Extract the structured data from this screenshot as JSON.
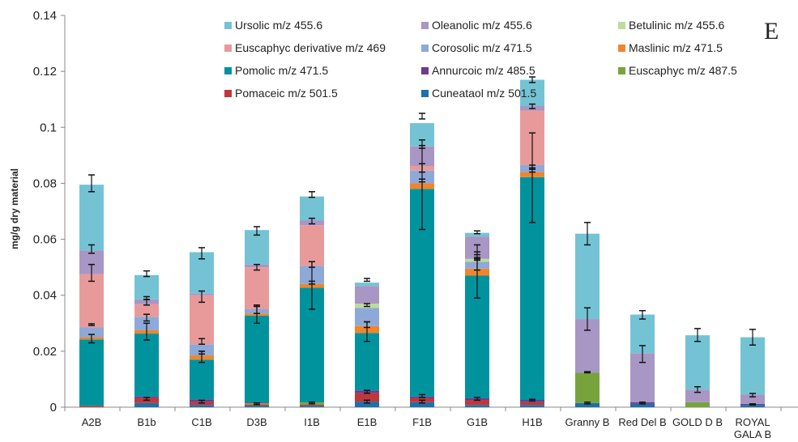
{
  "chart_data": {
    "type": "bar",
    "stacked": true,
    "panel_label": "E",
    "ylabel": "mg/g dry material",
    "xlabel": "",
    "ylim": [
      0,
      0.14
    ],
    "yticks": [
      "0",
      "0.02",
      "0.04",
      "0.06",
      "0.08",
      "0.1",
      "0.12",
      "0.14"
    ],
    "legend_position": "top",
    "categories": [
      "A2B",
      "B1b",
      "C1B",
      "D3B",
      "I1B",
      "E1B",
      "F1B",
      "G1B",
      "H1B",
      "Granny B",
      "Red Del B",
      "GOLD D B",
      "ROYAL GALA B"
    ],
    "series": [
      {
        "name": "Cuneataol m/z 501.5",
        "color": "#1F6FA8",
        "values": [
          0.0,
          0.0015,
          0.0008,
          0.0005,
          0.0005,
          0.002,
          0.0018,
          0.0008,
          0.0008,
          0.0015,
          0.0012,
          0.0,
          0.0008
        ]
      },
      {
        "name": "Pomaceic m/z 501.5",
        "color": "#C0363A",
        "values": [
          0.0005,
          0.0018,
          0.0012,
          0.0004,
          0.0004,
          0.003,
          0.0014,
          0.0018,
          0.001,
          0.0,
          0.0,
          0.0,
          0.0
        ]
      },
      {
        "name": "Euscaphyc m/z 487.5",
        "color": "#77A33D",
        "values": [
          0.0,
          0.0,
          0.0,
          0.0005,
          0.0008,
          0.0,
          0.0,
          0.0,
          0.0,
          0.0108,
          0.0,
          0.0018,
          0.0
        ]
      },
      {
        "name": "Annurcoic m/z 485.5",
        "color": "#6A3D8F",
        "values": [
          0.0,
          0.0005,
          0.0008,
          0.0003,
          0.0,
          0.001,
          0.0006,
          0.0006,
          0.0008,
          0.0,
          0.0006,
          0.0,
          0.0004
        ]
      },
      {
        "name": "Pomolic m/z 471.5",
        "color": "#00939E",
        "values": [
          0.0237,
          0.0225,
          0.0142,
          0.031,
          0.041,
          0.0205,
          0.0742,
          0.0438,
          0.0796,
          0.0,
          0.0,
          0.0,
          0.0
        ]
      },
      {
        "name": "Maslinic m/z 471.5",
        "color": "#F0852B",
        "values": [
          0.0008,
          0.0012,
          0.0015,
          0.0008,
          0.0013,
          0.0025,
          0.002,
          0.0025,
          0.0018,
          0.0,
          0.0,
          0.0,
          0.0
        ]
      },
      {
        "name": "Corosolic m/z 471.5",
        "color": "#8EA9D8",
        "values": [
          0.0035,
          0.0048,
          0.004,
          0.0015,
          0.0065,
          0.0065,
          0.0045,
          0.0025,
          0.0025,
          0.0,
          0.0,
          0.0,
          0.0
        ]
      },
      {
        "name": "Euscaphyc derivative m/z 469",
        "color": "#E89A9A",
        "values": [
          0.019,
          0.0045,
          0.0175,
          0.015,
          0.0145,
          0.0,
          0.0017,
          0.0,
          0.0195,
          0.0,
          0.0,
          0.0,
          0.0
        ]
      },
      {
        "name": "Betulinic m/z 455.6",
        "color": "#BDDC9A",
        "values": [
          0.0,
          0.0,
          0.0,
          0.0,
          0.0,
          0.0015,
          0.0,
          0.001,
          0.0,
          0.0,
          0.0,
          0.0,
          0.0
        ]
      },
      {
        "name": "Oleanolic m/z 455.6",
        "color": "#A896C4",
        "values": [
          0.0085,
          0.0017,
          0.0006,
          0.001,
          0.0018,
          0.0063,
          0.007,
          0.008,
          0.0016,
          0.0192,
          0.0175,
          0.0045,
          0.0033
        ]
      },
      {
        "name": "Ursolic m/z 455.6",
        "color": "#74C3D5",
        "values": [
          0.0235,
          0.0087,
          0.0148,
          0.0123,
          0.0085,
          0.0012,
          0.0083,
          0.0013,
          0.0094,
          0.0305,
          0.0138,
          0.0194,
          0.0205
        ]
      }
    ],
    "error_bars": [
      {
        "category": "A2B",
        "points": [
          [
            0.0245,
            0.0015
          ],
          [
            0.0295,
            0.0003
          ],
          [
            0.048,
            0.003
          ],
          [
            0.0565,
            0.0015
          ],
          [
            0.08,
            0.003
          ]
        ]
      },
      {
        "category": "B1b",
        "points": [
          [
            0.003,
            0.0005
          ],
          [
            0.027,
            0.003
          ],
          [
            0.032,
            0.0012
          ],
          [
            0.0375,
            0.001
          ],
          [
            0.039,
            0.0005
          ],
          [
            0.0477,
            0.001
          ]
        ]
      },
      {
        "category": "C1B",
        "points": [
          [
            0.002,
            0.0005
          ],
          [
            0.018,
            0.002
          ],
          [
            0.0195,
            0.0005
          ],
          [
            0.0235,
            0.001
          ],
          [
            0.0395,
            0.002
          ],
          [
            0.055,
            0.002
          ]
        ]
      },
      {
        "category": "D3B",
        "points": [
          [
            0.0012,
            0.0003
          ],
          [
            0.033,
            0.003
          ],
          [
            0.035,
            0.0015
          ],
          [
            0.05,
            0.001
          ],
          [
            0.063,
            0.0015
          ]
        ]
      },
      {
        "category": "I1B",
        "points": [
          [
            0.0015,
            0.0003
          ],
          [
            0.0435,
            0.0085
          ],
          [
            0.0445,
            0.0005
          ],
          [
            0.051,
            0.001
          ],
          [
            0.0665,
            0.001
          ],
          [
            0.076,
            0.001
          ]
        ]
      },
      {
        "category": "E1B",
        "points": [
          [
            0.002,
            0.0005
          ],
          [
            0.0055,
            0.0005
          ],
          [
            0.027,
            0.0035
          ],
          [
            0.0295,
            0.001
          ],
          [
            0.0365,
            0.0005
          ],
          [
            0.0455,
            0.0005
          ]
        ]
      },
      {
        "category": "F1B",
        "points": [
          [
            0.002,
            0.0005
          ],
          [
            0.004,
            0.0005
          ],
          [
            0.0785,
            0.015
          ],
          [
            0.081,
            0.0005
          ],
          [
            0.0855,
            0.0015
          ],
          [
            0.094,
            0.0015
          ],
          [
            0.104,
            0.001
          ]
        ]
      },
      {
        "category": "G1B",
        "points": [
          [
            0.003,
            0.0005
          ],
          [
            0.0485,
            0.0095
          ],
          [
            0.051,
            0.002
          ],
          [
            0.053,
            0.0005
          ],
          [
            0.055,
            0.0005
          ],
          [
            0.0625,
            0.0005
          ]
        ]
      },
      {
        "category": "H1B",
        "points": [
          [
            0.0025,
            0.0003
          ],
          [
            0.082,
            0.016
          ],
          [
            0.0845,
            0.0005
          ],
          [
            0.086,
            0.0005
          ],
          [
            0.1075,
            0.0008
          ],
          [
            0.117,
            0.001
          ]
        ]
      },
      {
        "category": "Granny B",
        "points": [
          [
            0.0015,
            0.0003
          ],
          [
            0.0125,
            0.0002
          ],
          [
            0.0315,
            0.004
          ],
          [
            0.062,
            0.004
          ]
        ]
      },
      {
        "category": "Red Del B",
        "points": [
          [
            0.0015,
            0.0003
          ],
          [
            0.019,
            0.003
          ],
          [
            0.033,
            0.0015
          ]
        ]
      },
      {
        "category": "GOLD D B",
        "points": [
          [
            0.0063,
            0.001
          ],
          [
            0.0258,
            0.0023
          ]
        ]
      },
      {
        "category": "ROYAL GALA B",
        "points": [
          [
            0.001,
            0.0002
          ],
          [
            0.0043,
            0.0006
          ],
          [
            0.025,
            0.0028
          ]
        ]
      }
    ]
  }
}
